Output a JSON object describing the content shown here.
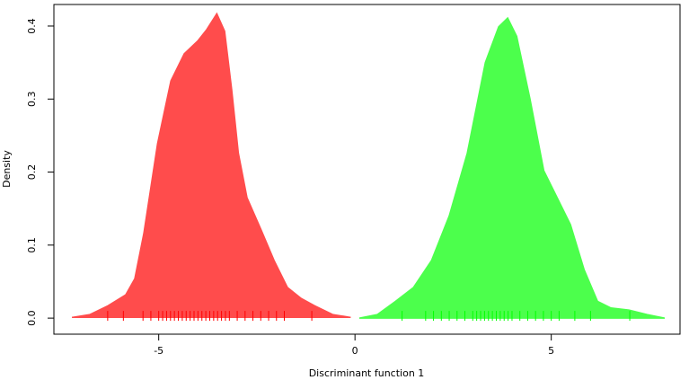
{
  "chart_data": {
    "type": "density",
    "xlabel": "Discriminant function 1",
    "ylabel": "Density",
    "xlim": [
      -7.67,
      8.28
    ],
    "ylim": [
      -0.022,
      0.4295
    ],
    "xticks": [
      -5,
      0,
      5
    ],
    "yticks": [
      {
        "value": 0,
        "label": "0.0"
      },
      0.1,
      0.2,
      0.3,
      0.4
    ],
    "series": [
      {
        "color": "#ff4c4c",
        "rug_color": "#ff0000",
        "x": [
          -7.21,
          -6.75,
          -6.29,
          -5.84,
          -5.61,
          -5.38,
          -5.03,
          -4.69,
          -4.35,
          -4.0,
          -3.78,
          -3.52,
          -3.32,
          -3.14,
          -2.97,
          -2.75,
          -2.4,
          -2.06,
          -1.72,
          -1.37,
          -1.03,
          -0.57,
          -0.11
        ],
        "values": [
          0.001,
          0.005,
          0.017,
          0.032,
          0.054,
          0.116,
          0.239,
          0.325,
          0.362,
          0.38,
          0.395,
          0.417,
          0.393,
          0.313,
          0.226,
          0.165,
          0.122,
          0.079,
          0.042,
          0.027,
          0.017,
          0.005,
          0.001
        ],
        "rug": [
          -6.3,
          -5.9,
          -5.4,
          -5.2,
          -5.0,
          -4.9,
          -4.8,
          -4.7,
          -4.6,
          -4.5,
          -4.4,
          -4.3,
          -4.2,
          -4.1,
          -4.0,
          -3.9,
          -3.8,
          -3.7,
          -3.6,
          -3.5,
          -3.4,
          -3.3,
          -3.2,
          -3.0,
          -2.8,
          -2.6,
          -2.4,
          -2.2,
          -2.0,
          -1.8,
          -1.1
        ]
      },
      {
        "color": "#4cff4c",
        "rug_color": "#00ff00",
        "x": [
          0.11,
          0.57,
          1.03,
          1.49,
          1.95,
          2.4,
          2.86,
          3.32,
          3.66,
          3.89,
          4.12,
          4.46,
          4.81,
          5.15,
          5.49,
          5.84,
          6.18,
          6.52,
          6.98,
          7.44,
          7.89
        ],
        "values": [
          0.0,
          0.005,
          0.023,
          0.042,
          0.079,
          0.14,
          0.226,
          0.35,
          0.399,
          0.411,
          0.386,
          0.3,
          0.202,
          0.165,
          0.128,
          0.066,
          0.023,
          0.014,
          0.011,
          0.005,
          0.0
        ],
        "rug": [
          1.2,
          1.8,
          2.0,
          2.2,
          2.4,
          2.6,
          2.8,
          3.0,
          3.1,
          3.2,
          3.3,
          3.4,
          3.5,
          3.6,
          3.7,
          3.8,
          3.9,
          4.0,
          4.2,
          4.4,
          4.6,
          4.8,
          5.0,
          5.2,
          5.6,
          6.0,
          7.0
        ]
      }
    ]
  }
}
